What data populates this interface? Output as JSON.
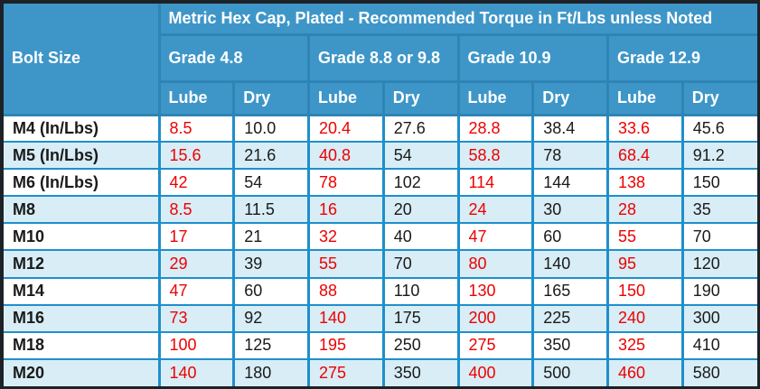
{
  "chart_data": {
    "type": "table",
    "title": "Metric Hex Cap, Plated - Recommended Torque in Ft/Lbs unless Noted",
    "corner_header": "Bolt Size",
    "column_groups": [
      "Grade 4.8",
      "Grade 8.8 or 9.8",
      "Grade 10.9",
      "Grade 12.9"
    ],
    "sub_columns": [
      "Lube",
      "Dry"
    ],
    "value_note": "Lube values shown in red, Dry values in black",
    "rows": [
      {
        "bolt_size": "M4 (In/Lbs)",
        "values": [
          "8.5",
          "10.0",
          "20.4",
          "27.6",
          "28.8",
          "38.4",
          "33.6",
          "45.6"
        ]
      },
      {
        "bolt_size": "M5 (In/Lbs)",
        "values": [
          "15.6",
          "21.6",
          "40.8",
          "54",
          "58.8",
          "78",
          "68.4",
          "91.2"
        ]
      },
      {
        "bolt_size": "M6 (In/Lbs)",
        "values": [
          "42",
          "54",
          "78",
          "102",
          "114",
          "144",
          "138",
          "150"
        ]
      },
      {
        "bolt_size": "M8",
        "values": [
          "8.5",
          "11.5",
          "16",
          "20",
          "24",
          "30",
          "28",
          "35"
        ]
      },
      {
        "bolt_size": "M10",
        "values": [
          "17",
          "21",
          "32",
          "40",
          "47",
          "60",
          "55",
          "70"
        ]
      },
      {
        "bolt_size": "M12",
        "values": [
          "29",
          "39",
          "55",
          "70",
          "80",
          "140",
          "95",
          "120"
        ]
      },
      {
        "bolt_size": "M14",
        "values": [
          "47",
          "60",
          "88",
          "110",
          "130",
          "165",
          "150",
          "190"
        ]
      },
      {
        "bolt_size": "M16",
        "values": [
          "73",
          "92",
          "140",
          "175",
          "200",
          "225",
          "240",
          "300"
        ]
      },
      {
        "bolt_size": "M18",
        "values": [
          "100",
          "125",
          "195",
          "250",
          "275",
          "350",
          "325",
          "410"
        ]
      },
      {
        "bolt_size": "M20",
        "values": [
          "140",
          "180",
          "275",
          "350",
          "400",
          "500",
          "460",
          "580"
        ]
      }
    ]
  },
  "colors": {
    "header_bg": "#3e96c8",
    "header_border": "#2e85b5",
    "header_text": "#ffffff",
    "grid_border": "#1e8fcb",
    "row_bg": "#ffffff",
    "row_alt_bg": "#d8edf5",
    "outer_border": "#1c2227",
    "lube_text": "#ee0000",
    "dry_text": "#1a1a1a"
  }
}
